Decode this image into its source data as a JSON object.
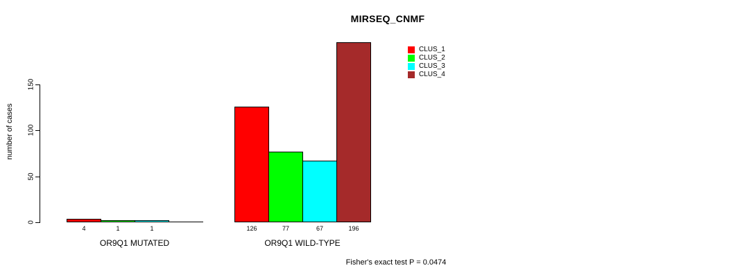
{
  "title": "MIRSEQ_CNMF",
  "ylabel": "number of cases",
  "footer": "Fisher's exact test P = 0.0474",
  "legend": {
    "items": [
      {
        "label": "CLUS_1",
        "color": "#ff0000"
      },
      {
        "label": "CLUS_2",
        "color": "#00ff00"
      },
      {
        "label": "CLUS_3",
        "color": "#00ffff"
      },
      {
        "label": "CLUS_4",
        "color": "#a52a2a"
      }
    ]
  },
  "chart_data": {
    "type": "bar",
    "title": "MIRSEQ_CNMF",
    "xlabel": "",
    "ylabel": "number of cases",
    "yticks": [
      0,
      50,
      100,
      150
    ],
    "ylim": [
      0,
      150
    ],
    "grid": false,
    "legend_position": "top-right",
    "categories": [
      "OR9Q1 MUTATED",
      "OR9Q1 WILD-TYPE"
    ],
    "series": [
      {
        "name": "CLUS_1",
        "color": "#ff0000",
        "values": [
          4,
          126
        ]
      },
      {
        "name": "CLUS_2",
        "color": "#00ff00",
        "values": [
          1,
          77
        ]
      },
      {
        "name": "CLUS_3",
        "color": "#00ffff",
        "values": [
          1,
          67
        ]
      },
      {
        "name": "CLUS_4",
        "color": "#a52a2a",
        "values": [
          0,
          196
        ]
      }
    ],
    "bar_value_labels": [
      [
        "4",
        "1",
        "1",
        ""
      ],
      [
        "126",
        "77",
        "67",
        "196"
      ]
    ],
    "annotation": "Fisher's exact test P = 0.0474"
  }
}
